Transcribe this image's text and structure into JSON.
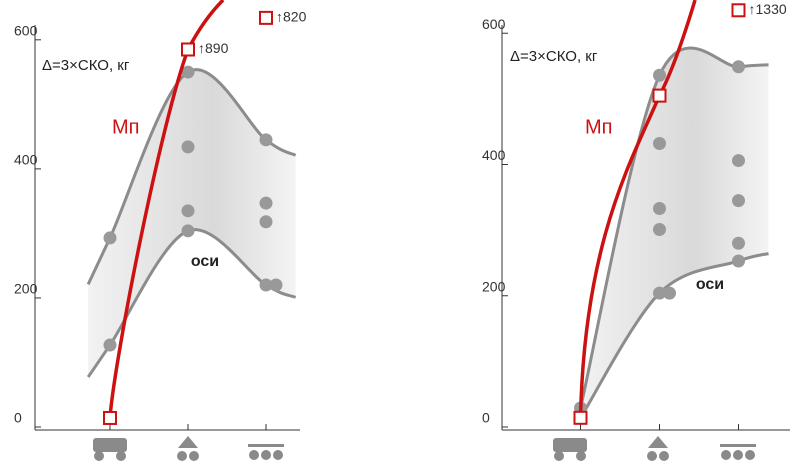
{
  "chart_data": [
    {
      "type": "scatter",
      "ylabel": "Δ=3×СКО, кг",
      "categories": [
        null,
        null,
        null
      ],
      "values": [
        [
          293,
          127
        ],
        [
          550,
          434,
          335,
          304
        ],
        [
          445,
          347,
          318,
          220,
          220
        ]
      ],
      "color": "#999999",
      "ylim": [
        0,
        640
      ],
      "yticks": [
        0,
        200,
        400,
        600
      ],
      "band_label": "оси",
      "line": {
        "name": "Mп",
        "color": "#cc1111",
        "values": [
          14,
          585,
          634
        ]
      },
      "annotations": [
        "↑890",
        "↑820"
      ]
    },
    {
      "type": "scatter",
      "ylabel": "Δ=3×СКО, кг",
      "categories": [
        null,
        null,
        null
      ],
      "values": [
        [
          29,
          14
        ],
        [
          536,
          504,
          432,
          333,
          301,
          204,
          204
        ],
        [
          549,
          406,
          345,
          280,
          253
        ]
      ],
      "color": "#999999",
      "ylim": [
        0,
        640
      ],
      "yticks": [
        0,
        200,
        400,
        600
      ],
      "band_label": "оси",
      "line": {
        "name": "Mп",
        "color": "#cc1111",
        "values": [
          14,
          505,
          635
        ]
      },
      "annotations": [
        "↑1330"
      ]
    }
  ]
}
